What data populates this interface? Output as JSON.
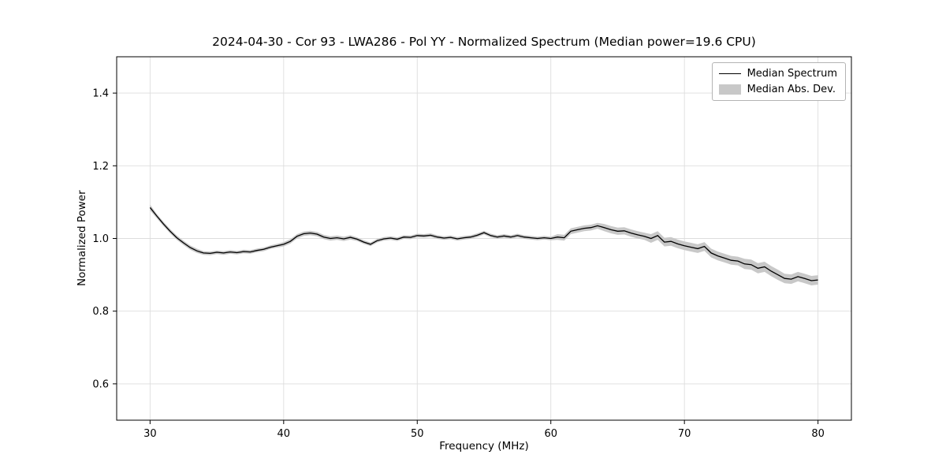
{
  "chart_data": {
    "type": "line",
    "title": "2024-04-30 - Cor 93 - LWA286 - Pol YY - Normalized Spectrum (Median power=19.6 CPU)",
    "xlabel": "Frequency (MHz)",
    "ylabel": "Normalized Power",
    "legend": [
      "Median Spectrum",
      "Median Abs. Dev."
    ],
    "legend_position": "upper right",
    "grid": true,
    "xlim": [
      27.5,
      82.5
    ],
    "ylim": [
      0.5,
      1.5
    ],
    "x_ticks": [
      30,
      40,
      50,
      60,
      70,
      80
    ],
    "y_ticks": [
      0.6,
      0.8,
      1.0,
      1.2,
      1.4
    ],
    "colors": {
      "line": "#000000",
      "band": "#c8c8c8",
      "grid": "#dddddd"
    },
    "x": [
      30,
      30.5,
      31,
      31.5,
      32,
      32.5,
      33,
      33.5,
      34,
      34.5,
      35,
      35.5,
      36,
      36.5,
      37,
      37.5,
      38,
      38.5,
      39,
      39.5,
      40,
      40.5,
      41,
      41.5,
      42,
      42.5,
      43,
      43.5,
      44,
      44.5,
      45,
      45.5,
      46,
      46.5,
      47,
      47.5,
      48,
      48.5,
      49,
      49.5,
      50,
      50.5,
      51,
      51.5,
      52,
      52.5,
      53,
      53.5,
      54,
      54.5,
      55,
      55.5,
      56,
      56.5,
      57,
      57.5,
      58,
      58.5,
      59,
      59.5,
      60,
      60.5,
      61,
      61.5,
      62,
      62.5,
      63,
      63.5,
      64,
      64.5,
      65,
      65.5,
      66,
      66.5,
      67,
      67.5,
      68,
      68.5,
      69,
      69.5,
      70,
      70.5,
      71,
      71.5,
      72,
      72.5,
      73,
      73.5,
      74,
      74.5,
      75,
      75.5,
      76,
      76.5,
      77,
      77.5,
      78,
      78.5,
      79,
      79.5,
      80
    ],
    "median": [
      1.085,
      1.062,
      1.04,
      1.02,
      1.002,
      0.988,
      0.975,
      0.966,
      0.96,
      0.959,
      0.962,
      0.96,
      0.963,
      0.961,
      0.964,
      0.963,
      0.967,
      0.97,
      0.976,
      0.98,
      0.984,
      0.992,
      1.006,
      1.013,
      1.015,
      1.012,
      1.004,
      1.0,
      1.002,
      0.999,
      1.003,
      0.998,
      0.99,
      0.984,
      0.994,
      0.999,
      1.001,
      0.998,
      1.004,
      1.003,
      1.008,
      1.007,
      1.009,
      1.004,
      1.001,
      1.003,
      0.999,
      1.002,
      1.004,
      1.009,
      1.016,
      1.008,
      1.004,
      1.007,
      1.004,
      1.008,
      1.004,
      1.002,
      1.0,
      1.002,
      1.0,
      1.004,
      1.002,
      1.02,
      1.024,
      1.028,
      1.03,
      1.035,
      1.03,
      1.024,
      1.02,
      1.021,
      1.015,
      1.01,
      1.006,
      1.0,
      1.008,
      0.99,
      0.992,
      0.985,
      0.98,
      0.976,
      0.972,
      0.978,
      0.96,
      0.952,
      0.946,
      0.94,
      0.938,
      0.93,
      0.928,
      0.918,
      0.922,
      0.91,
      0.9,
      0.89,
      0.888,
      0.895,
      0.89,
      0.884,
      0.886
    ],
    "mad": [
      0.008,
      0.006,
      0.006,
      0.006,
      0.006,
      0.006,
      0.006,
      0.006,
      0.005,
      0.005,
      0.005,
      0.005,
      0.005,
      0.005,
      0.005,
      0.005,
      0.005,
      0.005,
      0.005,
      0.005,
      0.006,
      0.006,
      0.006,
      0.006,
      0.006,
      0.006,
      0.006,
      0.006,
      0.006,
      0.006,
      0.006,
      0.005,
      0.005,
      0.005,
      0.005,
      0.005,
      0.005,
      0.005,
      0.005,
      0.005,
      0.005,
      0.005,
      0.005,
      0.005,
      0.005,
      0.005,
      0.005,
      0.005,
      0.005,
      0.005,
      0.005,
      0.005,
      0.005,
      0.005,
      0.005,
      0.005,
      0.005,
      0.005,
      0.005,
      0.005,
      0.005,
      0.008,
      0.008,
      0.008,
      0.008,
      0.008,
      0.008,
      0.008,
      0.01,
      0.01,
      0.01,
      0.01,
      0.01,
      0.01,
      0.01,
      0.012,
      0.012,
      0.012,
      0.012,
      0.012,
      0.012,
      0.012,
      0.012,
      0.012,
      0.012,
      0.012,
      0.012,
      0.012,
      0.012,
      0.014,
      0.014,
      0.014,
      0.014,
      0.014,
      0.014,
      0.013,
      0.013,
      0.013,
      0.013,
      0.013,
      0.013
    ]
  }
}
